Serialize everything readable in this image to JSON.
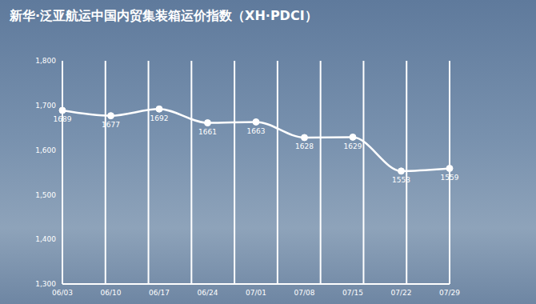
{
  "chart_data": {
    "type": "line",
    "title": "新华·泛亚航运中国内贸集装箱运价指数（XH·PDCI）",
    "categories": [
      "06/03",
      "06/10",
      "06/17",
      "06/24",
      "07/01",
      "07/08",
      "07/15",
      "07/22",
      "07/29"
    ],
    "values": [
      1689,
      1677,
      1692,
      1661,
      1663,
      1628,
      1629,
      1553,
      1559
    ],
    "color": "#ffffff",
    "ylim": [
      1300,
      1800
    ],
    "yticks": [
      {
        "value": 1300,
        "label": "1,300"
      },
      {
        "value": 1400,
        "label": "1,400"
      },
      {
        "value": 1500,
        "label": "1,500"
      },
      {
        "value": 1600,
        "label": "1,600"
      },
      {
        "value": 1700,
        "label": "1,700"
      },
      {
        "value": 1800,
        "label": "1,800"
      }
    ],
    "grid": true,
    "data_labels": true,
    "marker": "circle",
    "line_style": "solid"
  }
}
